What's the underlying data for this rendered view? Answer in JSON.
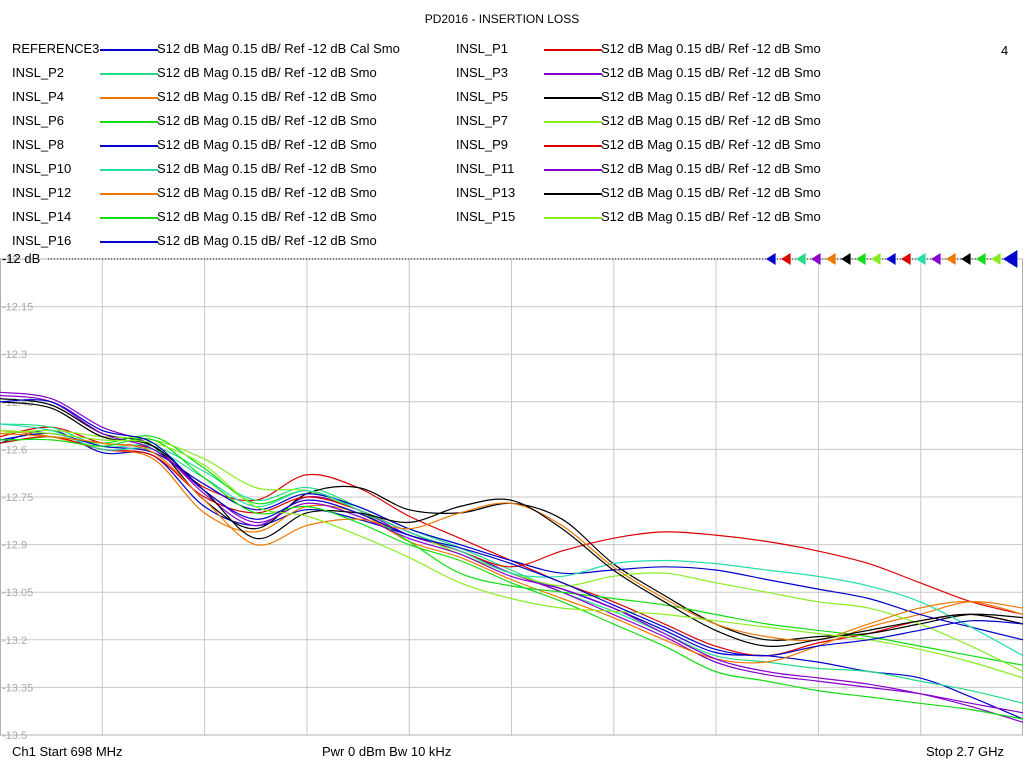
{
  "title": "PD2016 - INSERTION LOSS",
  "channel_number": "4",
  "reference_label": "-12 dB",
  "footer": {
    "start": "Ch1  Start  698 MHz",
    "middle": "Pwr  0 dBm  Bw  10 kHz",
    "stop": "Stop  2.7 GHz"
  },
  "legend": [
    {
      "name": "REFERENCE3",
      "desc": "S12  dB Mag  0.15 dB/ Ref -12 dB  Cal Smo",
      "color": "#0000cc"
    },
    {
      "name": "INSL_P1",
      "desc": "S12  dB Mag  0.15 dB/ Ref -12 dB  Smo",
      "color": "#dd0000"
    },
    {
      "name": "INSL_P2",
      "desc": "S12  dB Mag  0.15 dB/ Ref -12 dB  Smo",
      "color": "#22dd88"
    },
    {
      "name": "INSL_P3",
      "desc": "S12  dB Mag  0.15 dB/ Ref -12 dB  Smo",
      "color": "#8800cc"
    },
    {
      "name": "INSL_P4",
      "desc": "S12  dB Mag  0.15 dB/ Ref -12 dB  Smo",
      "color": "#ee7700"
    },
    {
      "name": "INSL_P5",
      "desc": "S12  dB Mag  0.15 dB/ Ref -12 dB  Smo",
      "color": "#000000"
    },
    {
      "name": "INSL_P6",
      "desc": "S12  dB Mag  0.15 dB/ Ref -12 dB  Smo",
      "color": "#11dd11"
    },
    {
      "name": "INSL_P7",
      "desc": "S12  dB Mag  0.15 dB/ Ref -12 dB  Smo",
      "color": "#88ee22"
    },
    {
      "name": "INSL_P8",
      "desc": "S12  dB Mag  0.15 dB/ Ref -12 dB  Smo",
      "color": "#0000cc"
    },
    {
      "name": "INSL_P9",
      "desc": "S12  dB Mag  0.15 dB/ Ref -12 dB  Smo",
      "color": "#dd0000"
    },
    {
      "name": "INSL_P10",
      "desc": "S12  dB Mag  0.15 dB/ Ref -12 dB  Smo",
      "color": "#22ddaa"
    },
    {
      "name": "INSL_P11",
      "desc": "S12  dB Mag  0.15 dB/ Ref -12 dB  Smo",
      "color": "#8800cc"
    },
    {
      "name": "INSL_P12",
      "desc": "S12  dB Mag  0.15 dB/ Ref -12 dB  Smo",
      "color": "#ee7700"
    },
    {
      "name": "INSL_P13",
      "desc": "S12  dB Mag  0.15 dB/ Ref -12 dB  Smo",
      "color": "#000000"
    },
    {
      "name": "INSL_P14",
      "desc": "S12  dB Mag  0.15 dB/ Ref -12 dB  Smo",
      "color": "#11dd11"
    },
    {
      "name": "INSL_P15",
      "desc": "S12  dB Mag  0.15 dB/ Ref -12 dB  Smo",
      "color": "#88ee22"
    },
    {
      "name": "INSL_P16",
      "desc": "S12  dB Mag  0.15 dB/ Ref -12 dB  Smo",
      "color": "#0000cc"
    }
  ],
  "marker_colors": [
    "#0000cc",
    "#dd0000",
    "#22dd88",
    "#8800cc",
    "#ee7700",
    "#000000",
    "#11dd11",
    "#88ee22",
    "#0000cc",
    "#dd0000",
    "#22ddaa",
    "#8800cc",
    "#ee7700",
    "#000000",
    "#11dd11",
    "#88ee22",
    "#0000cc"
  ],
  "chart_data": {
    "type": "line",
    "title": "PD2016 - INSERTION LOSS",
    "x_unit": "MHz",
    "xlim": [
      698,
      2700
    ],
    "ylim": [
      -13.5,
      -12.0
    ],
    "yticks": [
      "-12",
      "-12.15",
      "-12.3",
      "-12.45",
      "-12.6",
      "-12.75",
      "-12.9",
      "-13.05",
      "-13.2",
      "-13.35",
      "-13.5"
    ],
    "grid": true,
    "x": [
      698,
      798,
      898,
      998,
      1098,
      1198,
      1298,
      1398,
      1498,
      1598,
      1698,
      1798,
      1898,
      1998,
      2098,
      2198,
      2298,
      2398,
      2498,
      2598,
      2700
    ],
    "series": [
      {
        "name": "REFERENCE3",
        "color": "#0000cc",
        "values": [
          -12.58,
          -12.54,
          -12.61,
          -12.62,
          -12.78,
          -12.84,
          -12.79,
          -12.82,
          -12.87,
          -12.92,
          -12.99,
          -13.04,
          -13.1,
          -13.17,
          -13.24,
          -13.25,
          -13.27,
          -13.3,
          -13.32,
          -13.38,
          -13.45
        ]
      },
      {
        "name": "INSL_P1",
        "color": "#dd0000",
        "values": [
          -12.56,
          -12.53,
          -12.58,
          -12.6,
          -12.72,
          -12.76,
          -12.68,
          -12.72,
          -12.81,
          -12.88,
          -12.95,
          -13.02,
          -13.08,
          -13.15,
          -13.22,
          -13.25,
          -13.21,
          -13.18,
          -13.14,
          -13.12,
          -13.15
        ]
      },
      {
        "name": "INSL_P2",
        "color": "#22dd88",
        "values": [
          -12.52,
          -12.53,
          -12.59,
          -12.59,
          -12.67,
          -12.76,
          -12.72,
          -12.78,
          -12.85,
          -12.91,
          -12.98,
          -13.05,
          -13.11,
          -13.18,
          -13.25,
          -13.27,
          -13.29,
          -13.3,
          -13.33,
          -13.36,
          -13.4
        ]
      },
      {
        "name": "INSL_P3",
        "color": "#8800cc",
        "values": [
          -12.42,
          -12.44,
          -12.53,
          -12.59,
          -12.74,
          -12.84,
          -12.75,
          -12.79,
          -12.87,
          -12.92,
          -12.99,
          -13.05,
          -13.12,
          -13.19,
          -13.27,
          -13.31,
          -13.33,
          -13.35,
          -13.37,
          -13.4,
          -13.43
        ]
      },
      {
        "name": "INSL_P4",
        "color": "#ee7700",
        "values": [
          -12.54,
          -12.56,
          -12.6,
          -12.63,
          -12.8,
          -12.86,
          -12.78,
          -12.8,
          -12.89,
          -12.94,
          -13.01,
          -13.07,
          -13.13,
          -13.2,
          -13.26,
          -13.27,
          -13.22,
          -13.16,
          -13.12,
          -13.08,
          -13.1
        ]
      },
      {
        "name": "INSL_P5",
        "color": "#000000",
        "values": [
          -12.44,
          -12.46,
          -12.55,
          -12.59,
          -12.76,
          -12.85,
          -12.74,
          -12.72,
          -12.79,
          -12.8,
          -12.77,
          -12.82,
          -12.96,
          -13.06,
          -13.15,
          -13.2,
          -13.19,
          -13.18,
          -13.15,
          -13.12,
          -13.13
        ]
      },
      {
        "name": "INSL_P6",
        "color": "#11dd11",
        "values": [
          -12.58,
          -12.56,
          -12.58,
          -12.56,
          -12.66,
          -12.77,
          -12.73,
          -12.79,
          -12.89,
          -12.99,
          -13.03,
          -13.05,
          -13.07,
          -13.09,
          -13.12,
          -13.15,
          -13.17,
          -13.19,
          -13.22,
          -13.25,
          -13.28
        ]
      },
      {
        "name": "INSL_P7",
        "color": "#88ee22",
        "values": [
          -12.55,
          -12.54,
          -12.56,
          -12.57,
          -12.63,
          -12.72,
          -12.73,
          -12.79,
          -12.86,
          -12.93,
          -12.99,
          -13.03,
          -13.0,
          -12.99,
          -13.02,
          -13.05,
          -13.08,
          -13.1,
          -13.15,
          -13.22,
          -13.3
        ]
      },
      {
        "name": "INSL_P8",
        "color": "#0000cc",
        "values": [
          -12.57,
          -12.55,
          -12.59,
          -12.61,
          -12.71,
          -12.79,
          -12.74,
          -12.78,
          -12.85,
          -12.9,
          -12.95,
          -12.99,
          -12.98,
          -12.97,
          -12.98,
          -13.01,
          -13.04,
          -13.07,
          -13.12,
          -13.16,
          -13.2
        ]
      },
      {
        "name": "INSL_P9",
        "color": "#dd0000",
        "values": [
          -12.58,
          -12.56,
          -12.6,
          -12.62,
          -12.75,
          -12.8,
          -12.75,
          -12.79,
          -12.86,
          -12.92,
          -12.97,
          -12.92,
          -12.88,
          -12.86,
          -12.87,
          -12.89,
          -12.92,
          -12.96,
          -13.02,
          -13.08,
          -13.12
        ]
      },
      {
        "name": "INSL_P10",
        "color": "#22ddaa",
        "values": [
          -12.52,
          -12.54,
          -12.6,
          -12.6,
          -12.69,
          -12.78,
          -12.73,
          -12.79,
          -12.86,
          -12.92,
          -12.99,
          -13.0,
          -12.96,
          -12.95,
          -12.96,
          -12.98,
          -13.0,
          -13.03,
          -13.08,
          -13.16,
          -13.25
        ]
      },
      {
        "name": "INSL_P11",
        "color": "#8800cc",
        "values": [
          -12.43,
          -12.45,
          -12.55,
          -12.6,
          -12.73,
          -12.83,
          -12.77,
          -12.81,
          -12.88,
          -12.93,
          -13.0,
          -13.04,
          -13.1,
          -13.18,
          -13.26,
          -13.3,
          -13.32,
          -13.34,
          -13.37,
          -13.41,
          -13.46
        ]
      },
      {
        "name": "INSL_P12",
        "color": "#ee7700",
        "values": [
          -12.55,
          -12.56,
          -12.58,
          -12.61,
          -12.76,
          -12.9,
          -12.84,
          -12.82,
          -12.85,
          -12.8,
          -12.77,
          -12.84,
          -12.97,
          -13.07,
          -13.15,
          -13.19,
          -13.2,
          -13.15,
          -13.1,
          -13.08,
          -13.12
        ]
      },
      {
        "name": "INSL_P13",
        "color": "#000000",
        "values": [
          -12.45,
          -12.47,
          -12.56,
          -12.59,
          -12.73,
          -12.88,
          -12.8,
          -12.8,
          -12.83,
          -12.78,
          -12.76,
          -12.85,
          -12.98,
          -13.08,
          -13.17,
          -13.22,
          -13.2,
          -13.17,
          -13.14,
          -13.12,
          -13.15
        ]
      },
      {
        "name": "INSL_P14",
        "color": "#11dd11",
        "values": [
          -12.57,
          -12.57,
          -12.59,
          -12.57,
          -12.69,
          -12.8,
          -12.78,
          -12.83,
          -12.9,
          -12.95,
          -13.02,
          -13.08,
          -13.15,
          -13.22,
          -13.3,
          -13.33,
          -13.36,
          -13.38,
          -13.4,
          -13.42,
          -13.45
        ]
      },
      {
        "name": "INSL_P15",
        "color": "#88ee22",
        "values": [
          -12.54,
          -12.55,
          -12.57,
          -12.58,
          -12.65,
          -12.78,
          -12.81,
          -12.87,
          -12.94,
          -13.02,
          -13.07,
          -13.1,
          -13.11,
          -13.12,
          -13.14,
          -13.16,
          -13.18,
          -13.2,
          -13.23,
          -13.27,
          -13.32
        ]
      },
      {
        "name": "INSL_P16",
        "color": "#0000cc",
        "values": [
          -12.45,
          -12.45,
          -12.54,
          -12.58,
          -12.73,
          -12.82,
          -12.76,
          -12.8,
          -12.87,
          -12.91,
          -12.96,
          -13.02,
          -13.09,
          -13.16,
          -13.23,
          -13.25,
          -13.22,
          -13.2,
          -13.17,
          -13.14,
          -13.15
        ]
      }
    ]
  }
}
